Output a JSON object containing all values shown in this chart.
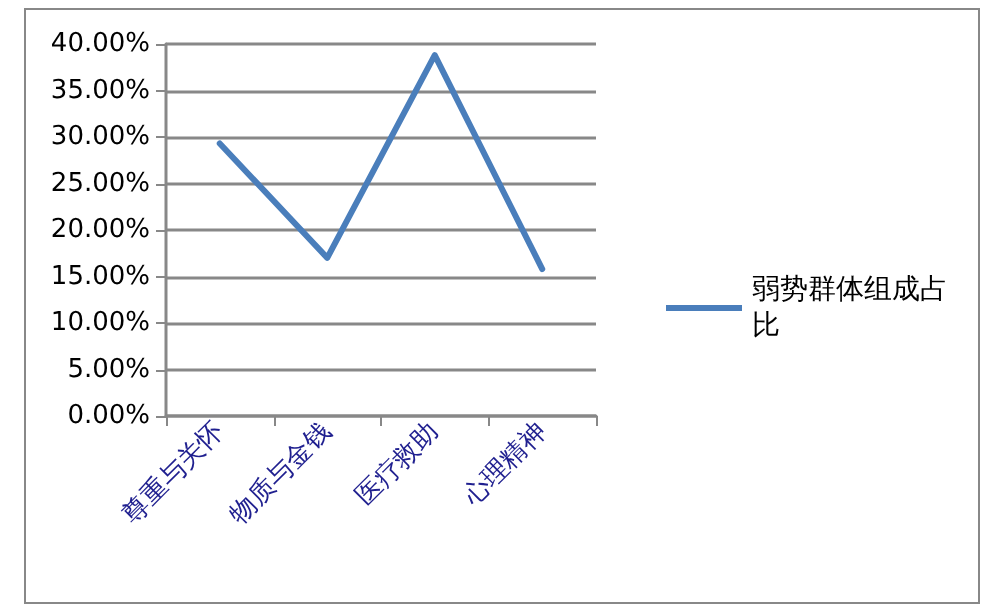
{
  "chart_data": {
    "type": "line",
    "categories": [
      "尊重与关怀",
      "物质与金钱",
      "医疗救助",
      "心理精神"
    ],
    "series": [
      {
        "name": "弱势群体组成占比",
        "color": "#4a7ebb",
        "values": [
          29.3,
          17.0,
          38.8,
          15.8
        ]
      }
    ],
    "ylim": [
      0,
      40
    ],
    "yticks": [
      {
        "value": 0,
        "label": "0.00%"
      },
      {
        "value": 5,
        "label": "5.00%"
      },
      {
        "value": 10,
        "label": "10.00%"
      },
      {
        "value": 15,
        "label": "15.00%"
      },
      {
        "value": 20,
        "label": "20.00%"
      },
      {
        "value": 25,
        "label": "25.00%"
      },
      {
        "value": 30,
        "label": "30.00%"
      },
      {
        "value": 35,
        "label": "35.00%"
      },
      {
        "value": 40,
        "label": "40.00%"
      }
    ],
    "grid": "y",
    "legend": "right",
    "marker": "none"
  }
}
